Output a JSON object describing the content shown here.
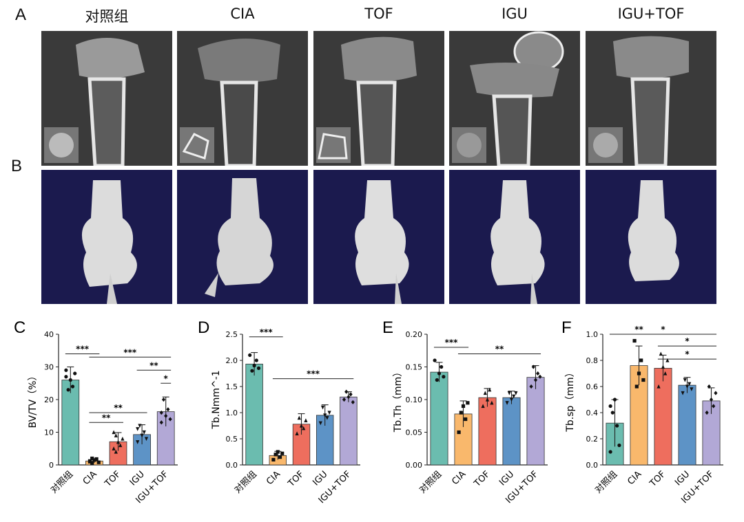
{
  "panel_labels": {
    "A": "A",
    "B": "B",
    "C": "C",
    "D": "D",
    "E": "E",
    "F": "F"
  },
  "groups": [
    "对照组",
    "CIA",
    "TOF",
    "IGU",
    "IGU+TOF"
  ],
  "colors": {
    "对照组": "#6bbcaf",
    "CIA": "#f9b86c",
    "TOF": "#ee6e5e",
    "IGU": "#5d93c6",
    "IGU+TOF": "#b2a8d6",
    "ct_bg": "#3a3a3a",
    "render_bg": "#1b1a4e",
    "bone": "#e6e6e6"
  },
  "chart_data": [
    {
      "type": "bar",
      "panel": "C",
      "ylabel": "BV/TV（%）",
      "ylim": [
        0,
        40
      ],
      "yticks": [
        "0",
        "10",
        "20",
        "30",
        "40"
      ],
      "categories": [
        "对照组",
        "CIA",
        "TOF",
        "IGU",
        "IGU+TOF"
      ],
      "values": [
        26,
        1.2,
        7.1,
        9.3,
        16.3
      ],
      "errors": [
        4,
        0.6,
        2.8,
        3,
        4.5
      ],
      "points": [
        [
          29,
          23,
          26,
          24,
          28,
          27
        ],
        [
          1,
          0.5,
          1.5,
          1.8,
          0.8,
          1.2,
          2
        ],
        [
          5,
          9,
          7,
          6,
          8,
          10,
          4
        ],
        [
          7,
          12,
          9,
          10,
          8,
          11
        ],
        [
          13,
          20,
          15,
          17,
          14,
          16
        ]
      ],
      "markers": [
        "circle",
        "square",
        "triangle",
        "inv-triangle",
        "diamond"
      ],
      "sig": [
        {
          "from": 0,
          "to": 1,
          "label": "***",
          "y": 34
        },
        {
          "from": 1,
          "to": 4,
          "label": "***",
          "y": 33
        },
        {
          "from": 3,
          "to": 4,
          "label": "**",
          "y": 29
        },
        {
          "from": 4,
          "to": 4.5,
          "label": "*",
          "y": 25
        },
        {
          "from": 1,
          "to": 3,
          "label": "**",
          "y": 16
        },
        {
          "from": 1,
          "to": 2,
          "label": "**",
          "y": 13
        }
      ]
    },
    {
      "type": "bar",
      "panel": "D",
      "ylabel": "Tb.Nmm^-1",
      "ylim": [
        0,
        2.5
      ],
      "yticks": [
        "0.0",
        "0.5",
        "1.0",
        "1.5",
        "2.0",
        "2.5"
      ],
      "categories": [
        "对照组",
        "CIA",
        "TOF",
        "IGU",
        "IGU+TOF"
      ],
      "values": [
        1.93,
        0.18,
        0.78,
        0.95,
        1.3
      ],
      "errors": [
        0.22,
        0.08,
        0.2,
        0.2,
        0.1
      ],
      "points": [
        [
          2.1,
          1.8,
          1.9,
          2.0,
          1.85
        ],
        [
          0.1,
          0.2,
          0.25,
          0.15,
          0.22
        ],
        [
          0.6,
          0.9,
          0.75,
          0.7,
          0.85
        ],
        [
          0.8,
          1.1,
          0.95,
          0.9,
          1.0
        ],
        [
          1.25,
          1.4,
          1.3,
          1.35,
          1.2
        ]
      ],
      "markers": [
        "circle",
        "square",
        "triangle",
        "inv-triangle",
        "diamond"
      ],
      "sig": [
        {
          "from": 0,
          "to": 1,
          "label": "***",
          "y": 2.45
        },
        {
          "from": 1,
          "to": 4,
          "label": "***",
          "y": 1.65
        }
      ]
    },
    {
      "type": "bar",
      "panel": "E",
      "ylabel": "Tb.Th（mm）",
      "ylim": [
        0,
        0.2
      ],
      "yticks": [
        "0.00",
        "0.05",
        "0.10",
        "0.15",
        "0.20"
      ],
      "categories": [
        "对照组",
        "CIA",
        "TOF",
        "IGU",
        "IGU+TOF"
      ],
      "values": [
        0.142,
        0.078,
        0.103,
        0.103,
        0.134
      ],
      "errors": [
        0.015,
        0.02,
        0.014,
        0.01,
        0.018
      ],
      "points": [
        [
          0.16,
          0.13,
          0.14,
          0.15,
          0.135
        ],
        [
          0.05,
          0.08,
          0.09,
          0.07,
          0.095
        ],
        [
          0.09,
          0.11,
          0.1,
          0.115,
          0.095
        ],
        [
          0.095,
          0.11,
          0.1,
          0.105,
          0.11
        ],
        [
          0.12,
          0.15,
          0.13,
          0.14,
          0.135
        ]
      ],
      "markers": [
        "circle",
        "square",
        "triangle",
        "inv-triangle",
        "diamond"
      ],
      "sig": [
        {
          "from": 0,
          "to": 1,
          "label": "***",
          "y": 0.18
        },
        {
          "from": 1,
          "to": 4,
          "label": "**",
          "y": 0.17
        }
      ]
    },
    {
      "type": "bar",
      "panel": "F",
      "ylabel": "Tb.sp（mm）",
      "ylim": [
        0,
        1.0
      ],
      "yticks": [
        "0.0",
        "0.2",
        "0.4",
        "0.6",
        "0.8",
        "1.0"
      ],
      "categories": [
        "对照组",
        "CIA",
        "TOF",
        "IGU",
        "IGU+TOF"
      ],
      "values": [
        0.32,
        0.76,
        0.74,
        0.61,
        0.49
      ],
      "errors": [
        0.18,
        0.15,
        0.1,
        0.06,
        0.1
      ],
      "points": [
        [
          0.1,
          0.4,
          0.5,
          0.3,
          0.15,
          0.45
        ],
        [
          0.95,
          0.6,
          0.7,
          0.8,
          0.65
        ],
        [
          0.6,
          0.85,
          0.75,
          0.7,
          0.8
        ],
        [
          0.55,
          0.65,
          0.6,
          0.62,
          0.58
        ],
        [
          0.4,
          0.6,
          0.5,
          0.45,
          0.55
        ]
      ],
      "markers": [
        "circle",
        "square",
        "triangle",
        "inv-triangle",
        "diamond"
      ],
      "sig": [
        {
          "from": 0,
          "to": 4,
          "label": "*",
          "y": 1.0
        },
        {
          "from": 0,
          "to": 2,
          "label": "**",
          "y": 1.0
        },
        {
          "from": 2,
          "to": 4,
          "label": "*",
          "y": 0.91
        },
        {
          "from": 2,
          "to": 4,
          "label": "*",
          "y": 0.81
        }
      ]
    }
  ]
}
